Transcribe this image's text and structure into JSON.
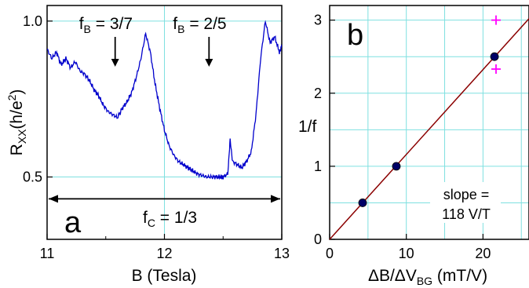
{
  "chart_data": [
    {
      "type": "line",
      "panel": "a",
      "xlabel": "B (Tesla)",
      "ylabel_main": "R",
      "ylabel_sub": "XX",
      "ylabel_unit": "(h/e",
      "ylabel_sup": "2",
      "ylabel_close": ")",
      "xlim": [
        11,
        13
      ],
      "ylim": [
        0.3,
        1.05
      ],
      "xticks": [
        11,
        12,
        13
      ],
      "xtick_labels": [
        "11",
        "12",
        "13"
      ],
      "yticks": [
        0.5,
        1.0
      ],
      "ytick_labels": [
        "0.5",
        "1.0"
      ],
      "grid": true,
      "series": [
        {
          "color": "#0000cc",
          "x": [
            11.0,
            11.04,
            11.08,
            11.12,
            11.16,
            11.2,
            11.24,
            11.28,
            11.32,
            11.36,
            11.4,
            11.44,
            11.48,
            11.52,
            11.56,
            11.6,
            11.64,
            11.68,
            11.72,
            11.76,
            11.8,
            11.84,
            11.88,
            11.92,
            11.96,
            12.0,
            12.04,
            12.08,
            12.12,
            12.16,
            12.2,
            12.24,
            12.28,
            12.32,
            12.36,
            12.4,
            12.44,
            12.48,
            12.5,
            12.54,
            12.56,
            12.58,
            12.62,
            12.66,
            12.7,
            12.74,
            12.78,
            12.82,
            12.86,
            12.9,
            12.94,
            12.98,
            13.0
          ],
          "y": [
            0.91,
            0.88,
            0.9,
            0.86,
            0.88,
            0.85,
            0.87,
            0.84,
            0.83,
            0.81,
            0.78,
            0.76,
            0.73,
            0.71,
            0.7,
            0.69,
            0.72,
            0.74,
            0.77,
            0.82,
            0.88,
            0.96,
            0.9,
            0.8,
            0.72,
            0.65,
            0.6,
            0.57,
            0.55,
            0.54,
            0.53,
            0.52,
            0.51,
            0.505,
            0.5,
            0.5,
            0.5,
            0.5,
            0.5,
            0.51,
            0.62,
            0.55,
            0.54,
            0.53,
            0.55,
            0.58,
            0.7,
            0.88,
            1.0,
            0.93,
            0.95,
            0.9,
            0.92
          ]
        }
      ],
      "annotations": [
        {
          "label_main": "f",
          "label_sub": "B",
          "label_rest": " = 3/7",
          "x": 11.58
        },
        {
          "label_main": "f",
          "label_sub": "B",
          "label_rest": " = 2/5",
          "x": 12.38
        }
      ],
      "span_annotation": {
        "label_main": "f",
        "label_sub": "C",
        "label_rest": " = 1/3",
        "x_from": 11.0,
        "x_to": 13.0,
        "y": 0.43
      },
      "panel_label": "a"
    },
    {
      "type": "scatter",
      "panel": "b",
      "xlabel_main": "ΔB/ΔV",
      "xlabel_sub": "BG",
      "xlabel_unit": "  (mT/V)",
      "ylabel": "1/f",
      "xlim": [
        0,
        26
      ],
      "ylim": [
        0,
        3.2
      ],
      "xticks": [
        0,
        10,
        20
      ],
      "xtick_labels": [
        "0",
        "10",
        "20"
      ],
      "yticks": [
        0,
        1,
        2,
        3
      ],
      "ytick_labels": [
        "0",
        "1",
        "2",
        "3"
      ],
      "grid": true,
      "series": [
        {
          "marker": "circle",
          "color": "#000066",
          "x": [
            4.3,
            8.7,
            21.5
          ],
          "y": [
            0.5,
            1.0,
            2.5
          ]
        },
        {
          "marker": "plus",
          "color": "#ff00ff",
          "x": [
            21.7,
            21.7
          ],
          "y": [
            3.0,
            2.33
          ]
        }
      ],
      "fit_line": {
        "color": "#8b0000",
        "x": [
          0,
          26
        ],
        "y": [
          0,
          3.02
        ]
      },
      "slope_label_line1": "slope =",
      "slope_label_line2": "118 V/T",
      "panel_label": "b"
    }
  ]
}
